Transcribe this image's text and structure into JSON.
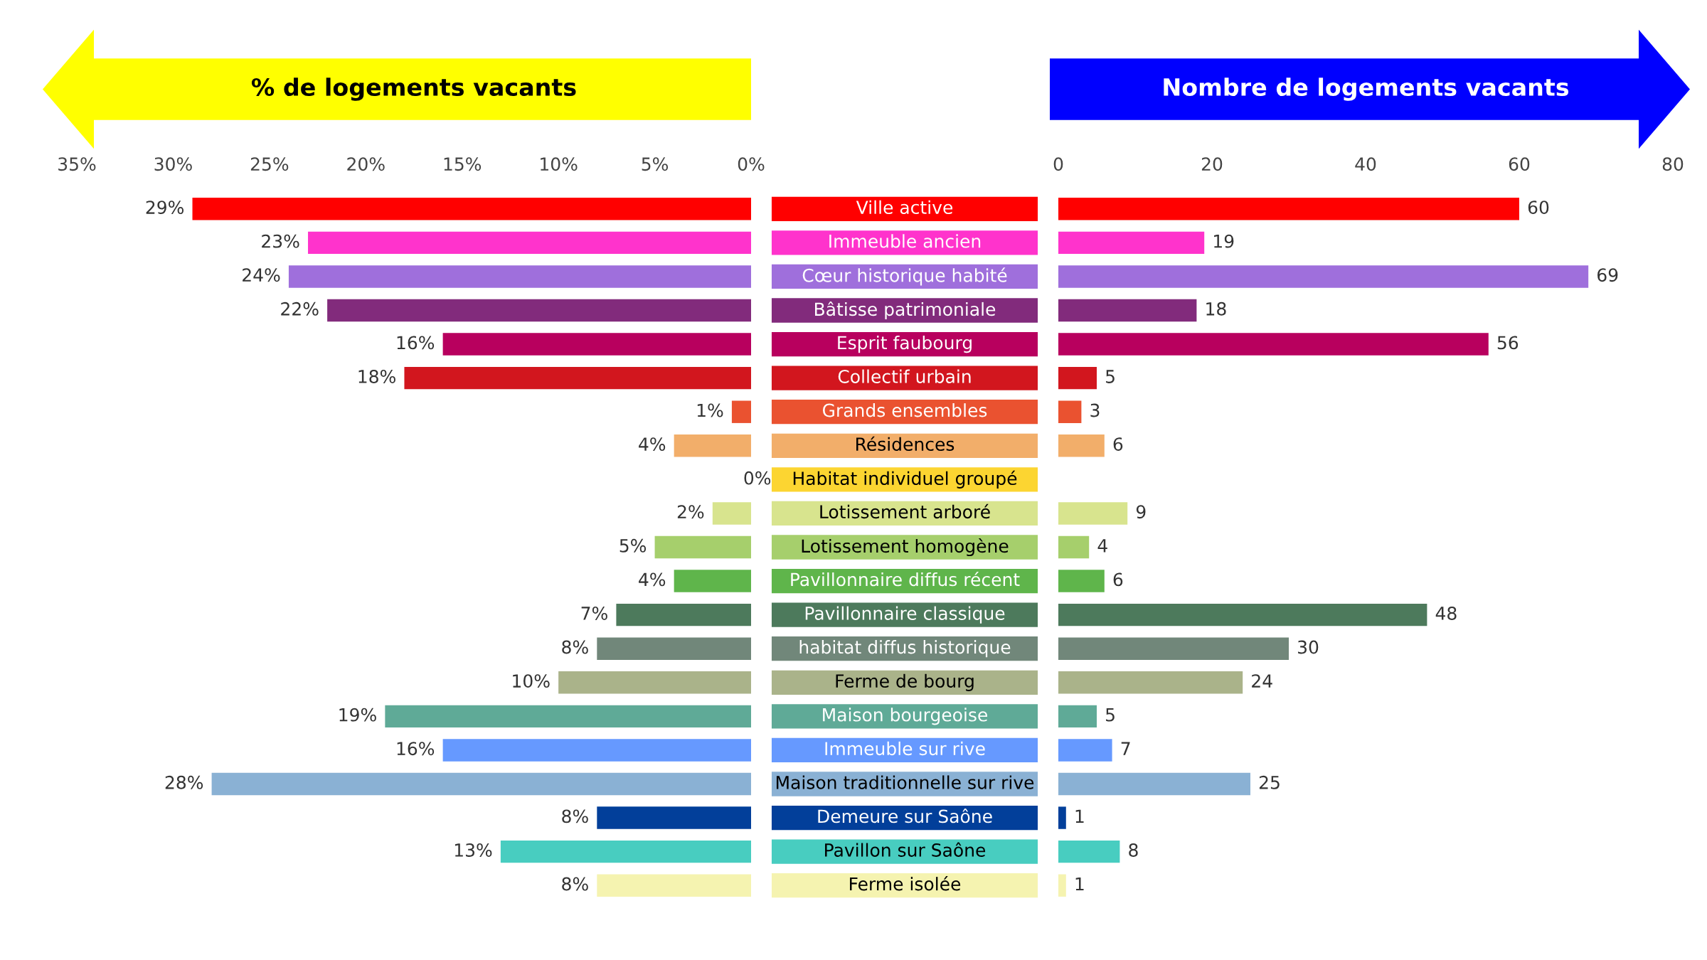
{
  "chart_data": [
    {
      "type": "bar",
      "orientation": "horizontal",
      "title": "% de logements vacants",
      "categories": [
        "Ville active",
        "Immeuble ancien",
        "Cœur historique habité",
        "Bâtisse patrimoniale",
        "Esprit faubourg",
        "Collectif urbain",
        "Grands ensembles",
        "Résidences",
        "Habitat individuel groupé",
        "Lotissement arboré",
        "Lotissement homogène",
        "Pavillonnaire diffus récent",
        "Pavillonnaire classique",
        "habitat diffus historique",
        "Ferme de bourg",
        "Maison bourgeoise",
        "Immeuble sur rive",
        "Maison traditionnelle sur rive",
        "Demeure sur Saône",
        "Pavillon sur Saône",
        "Ferme isolée"
      ],
      "values": [
        29,
        23,
        24,
        22,
        16,
        18,
        1,
        4,
        0,
        2,
        5,
        4,
        7,
        8,
        10,
        19,
        16,
        28,
        8,
        13,
        8
      ],
      "value_labels": [
        "29%",
        "23%",
        "24%",
        "22%",
        "16%",
        "18%",
        "1%",
        "4%",
        "0%",
        "2%",
        "5%",
        "4%",
        "7%",
        "8%",
        "10%",
        "19%",
        "16%",
        "28%",
        "8%",
        "13%",
        "8%"
      ],
      "colors": [
        "#ff0000",
        "#ff33cc",
        "#9f6fdc",
        "#822b7c",
        "#b8005e",
        "#d2161e",
        "#ea5230",
        "#f2ae6a",
        "#fcd531",
        "#d8e48e",
        "#a6cf6c",
        "#5fb54b",
        "#4d7a5c",
        "#71877a",
        "#aab38a",
        "#5faa97",
        "#6699ff",
        "#8ab1d4",
        "#023f9a",
        "#48cdc0",
        "#f5f3b0"
      ],
      "xlim": [
        35,
        0
      ],
      "xticks": [
        {
          "value": 35,
          "label": "35%"
        },
        {
          "value": 30,
          "label": "30%"
        },
        {
          "value": 25,
          "label": "25%"
        },
        {
          "value": 20,
          "label": "20%"
        },
        {
          "value": 15,
          "label": "15%"
        },
        {
          "value": 10,
          "label": "10%"
        },
        {
          "value": 5,
          "label": "5%"
        },
        {
          "value": 0,
          "label": "0%"
        }
      ],
      "grid": false,
      "legend": false
    },
    {
      "type": "bar",
      "orientation": "horizontal",
      "title": "Nombre de logements vacants",
      "categories": [
        "Ville active",
        "Immeuble ancien",
        "Cœur historique habité",
        "Bâtisse patrimoniale",
        "Esprit faubourg",
        "Collectif urbain",
        "Grands ensembles",
        "Résidences",
        "Habitat individuel groupé",
        "Lotissement arboré",
        "Lotissement homogène",
        "Pavillonnaire diffus récent",
        "Pavillonnaire classique",
        "habitat diffus historique",
        "Ferme de bourg",
        "Maison bourgeoise",
        "Immeuble sur rive",
        "Maison traditionnelle sur rive",
        "Demeure sur Saône",
        "Pavillon sur Saône",
        "Ferme isolée"
      ],
      "values": [
        60,
        19,
        69,
        18,
        56,
        5,
        3,
        6,
        null,
        9,
        4,
        6,
        48,
        30,
        24,
        5,
        7,
        25,
        1,
        8,
        1
      ],
      "data_labels": true,
      "colors": [
        "#ff0000",
        "#ff33cc",
        "#9f6fdc",
        "#822b7c",
        "#b8005e",
        "#d2161e",
        "#ea5230",
        "#f2ae6a",
        "#fcd531",
        "#d8e48e",
        "#a6cf6c",
        "#5fb54b",
        "#4d7a5c",
        "#71877a",
        "#aab38a",
        "#5faa97",
        "#6699ff",
        "#8ab1d4",
        "#023f9a",
        "#48cdc0",
        "#f5f3b0"
      ],
      "xlim": [
        0,
        80
      ],
      "xticks": [
        0,
        20,
        40,
        60,
        80
      ],
      "tick_labels": "x",
      "grid": false,
      "legend": false
    }
  ]
}
